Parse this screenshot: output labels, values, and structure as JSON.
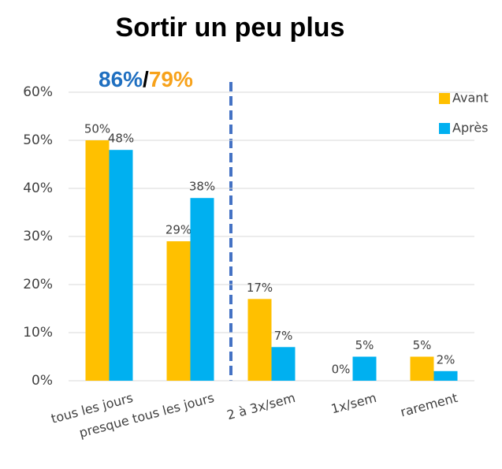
{
  "chart_data": {
    "type": "bar",
    "title": "Sortir un peu plus",
    "annotations": [
      {
        "text": "86%",
        "color": "#1f6fc0"
      },
      {
        "text": "/",
        "color": "#000000"
      },
      {
        "text": "79%",
        "color": "#f7a21b"
      }
    ],
    "categories": [
      "tous les jours",
      "presque tous les jours",
      "2 à 3x/sem",
      "1x/sem",
      "rarement"
    ],
    "series": [
      {
        "name": "Avant",
        "color": "#FFC000",
        "values": [
          50,
          29,
          17,
          0,
          5
        ],
        "value_labels": [
          "50%",
          "29%",
          "17%",
          "0%",
          "5%"
        ]
      },
      {
        "name": "Après",
        "color": "#00B0F0",
        "values": [
          48,
          38,
          7,
          5,
          2
        ],
        "value_labels": [
          "48%",
          "38%",
          "7%",
          "5%",
          "2%"
        ]
      }
    ],
    "ylim": [
      0,
      60
    ],
    "yticks": [
      {
        "value": 0,
        "label": "0%"
      },
      {
        "value": 10,
        "label": "10%"
      },
      {
        "value": 20,
        "label": "20%"
      },
      {
        "value": 30,
        "label": "30%"
      },
      {
        "value": 40,
        "label": "40%"
      },
      {
        "value": 50,
        "label": "50%"
      },
      {
        "value": 60,
        "label": "60%"
      }
    ],
    "grid": true,
    "legend": "top-right"
  }
}
